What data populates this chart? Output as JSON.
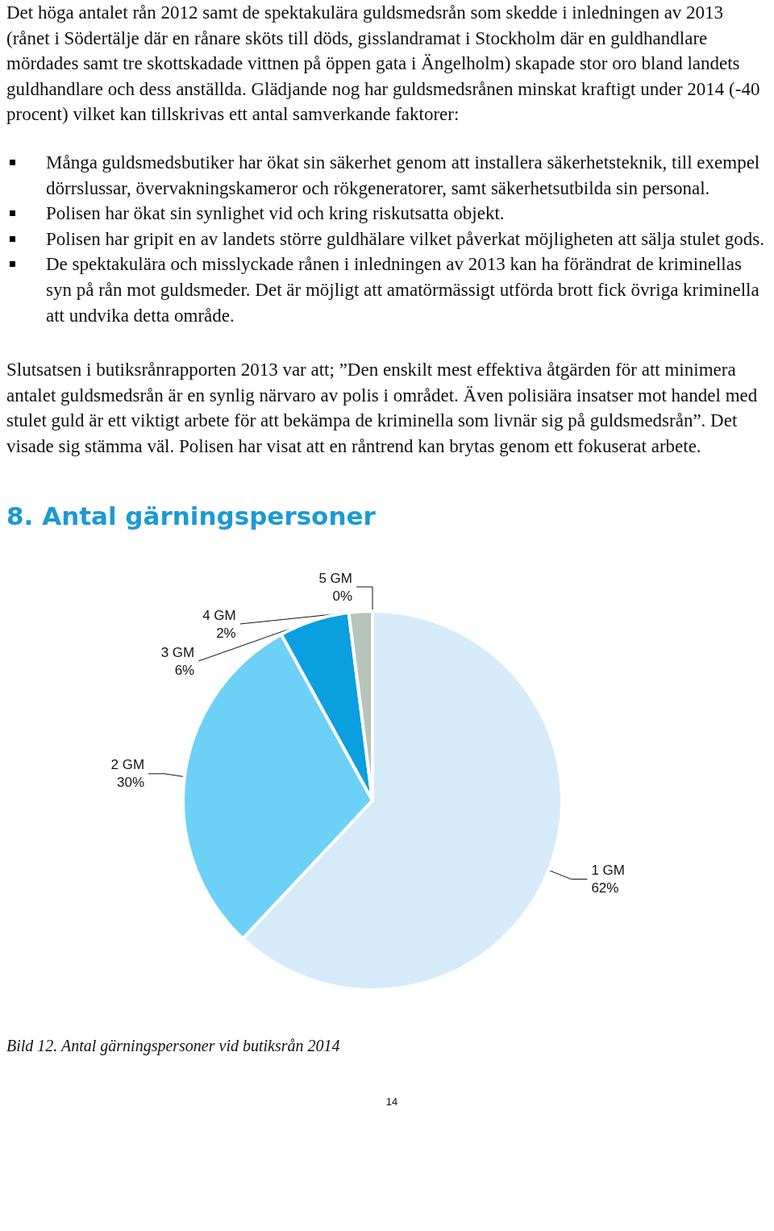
{
  "chart_data": {
    "type": "pie",
    "title": "8. Antal gärningspersoner",
    "annotations": [
      "Det höga antalet rån 2012 samt de spektakulära guldsmedsrån som skedde i inledningen av 2013 (rånet i Södertälje där en rånare sköts till döds, gisslandramat i Stockholm där en guldhandlare mördades samt tre skottskadade vittnen på öppen gata i Ängelholm) skapade stor oro bland landets guldhandlare och dess anställda. Glädjande nog har guldsmedsrånen minskat kraftigt under 2014 (-40 procent) vilket kan tillskrivas ett antal samverkande faktorer:",
      "Många guldsmedsbutiker har ökat sin säkerhet genom att installera säkerhetsteknik, till exempel dörrslussar, övervakningskameror och rökgeneratorer, samt säkerhetsutbilda sin personal.",
      "Polisen har ökat sin synlighet vid och kring riskutsatta objekt.",
      "Polisen har gripit en av landets större guldhälare vilket påverkat möjligheten att sälja stulet gods.",
      "De spektakulära och misslyckade rånen i inledningen av 2013 kan ha förändrat de kriminellas syn på rån mot guldsmeder. Det är möjligt att amatörmässigt utförda brott fick övriga kriminella att undvika detta område.",
      "Slutsatsen i butiksrånrapporten 2013 var att; ”Den enskilt mest effektiva åtgärden för att minimera antalet guldsmedsrån är en synlig närvaro av polis i området. Även polisiära insatser mot handel med stulet guld är ett viktigt arbete för att bekämpa de kriminella som livnär sig på guldsmedsrån”. Det visade sig stämma väl. Polisen har visat att en råntrend kan brytas genom ett fokuserat arbete.",
      "Bild 12. Antal gärningspersoner vid butiksrån 2014",
      "14"
    ],
    "categories": [
      "1 GM",
      "2 GM",
      "3 GM",
      "4 GM",
      "5 GM"
    ],
    "values": [
      62,
      30,
      6,
      2,
      0
    ],
    "value_labels": [
      "62%",
      "30%",
      "6%",
      "2%",
      "0%"
    ],
    "colors": [
      "#d5ebfa",
      "#6dd0f7",
      "#0a9fdf",
      "#b7c3bb",
      "#5b6b70"
    ],
    "legend": false
  }
}
